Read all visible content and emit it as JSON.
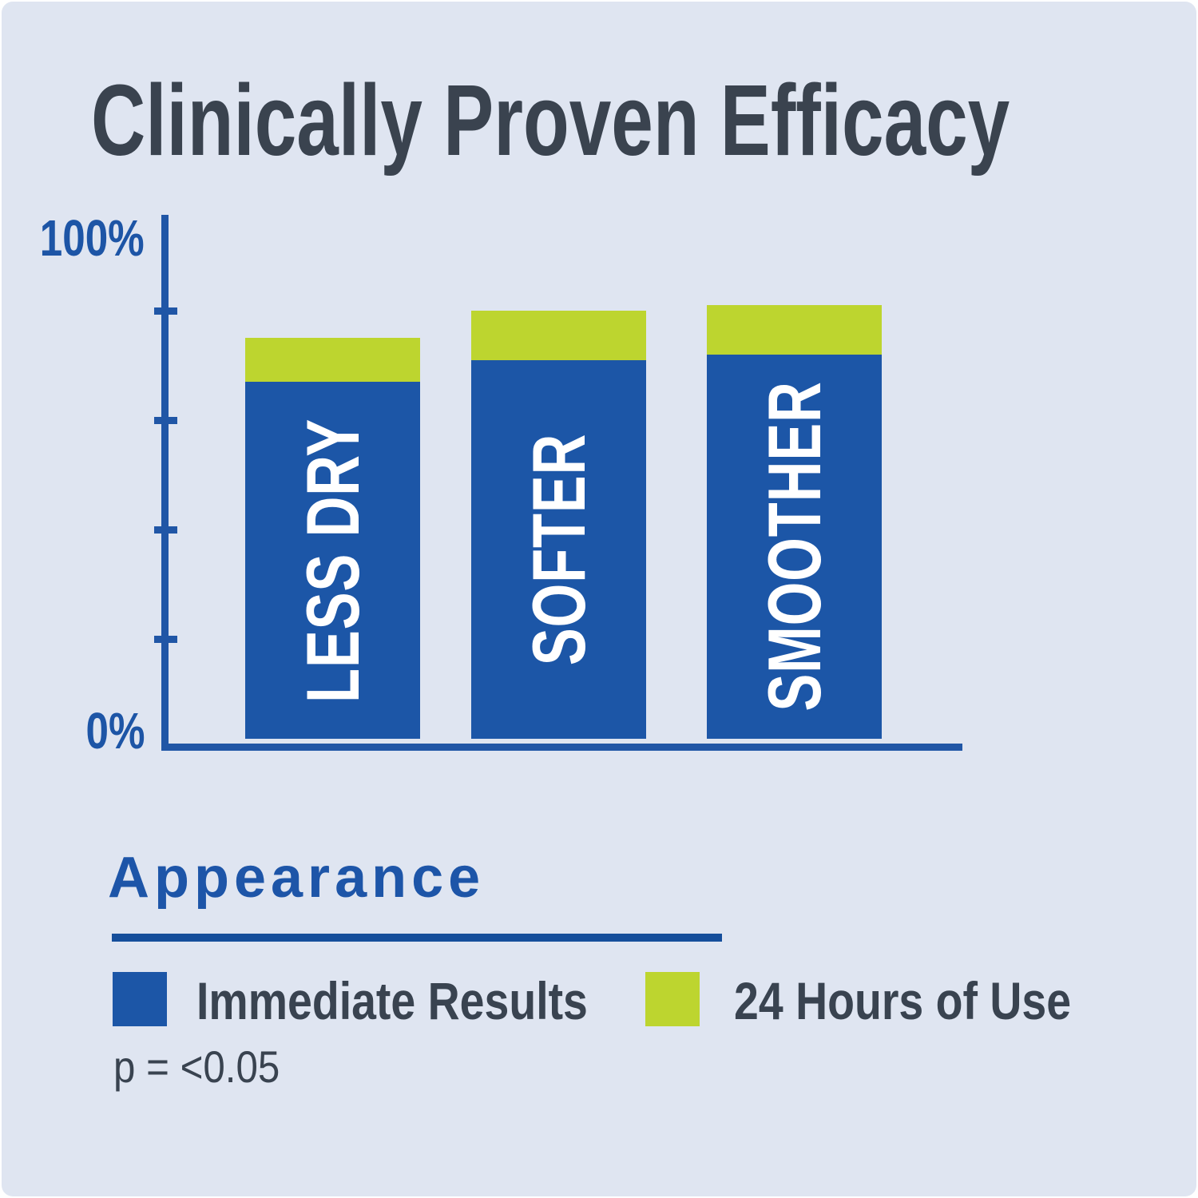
{
  "title": "Clinically Proven Efficacy",
  "y_axis": {
    "top_label": "100%",
    "bottom_label": "0%"
  },
  "chart_data": {
    "type": "bar",
    "stacked": true,
    "title": "Clinically Proven Efficacy",
    "categories": [
      "LESS DRY",
      "SOFTER",
      "SMOOTHER"
    ],
    "series": [
      {
        "name": "Immediate Results",
        "color": "#1c56a7",
        "values": [
          67,
          71,
          72
        ]
      },
      {
        "name": "24 Hours of Use",
        "color": "#bdd52f",
        "values": [
          75,
          80,
          81
        ],
        "note": "values are stacked totals after 24 hours of use (top of green cap)"
      }
    ],
    "ylim": [
      0,
      100
    ],
    "ytick_marks_pct": [
      20,
      40,
      60,
      80
    ],
    "ytick_labels": [
      "0%",
      "100%"
    ],
    "grid": false,
    "bar_label_color": "#ffffff",
    "legend_title": "Appearance",
    "legend_position": "bottom",
    "footnote": "p = <0.05"
  },
  "legend": {
    "title": "Appearance",
    "items": [
      {
        "label": "Immediate Results"
      },
      {
        "label": "24 Hours of Use"
      }
    ],
    "footnote": "p = <0.05"
  },
  "colors": {
    "background": "#dfe5f1",
    "outer_edge": "#ffffff",
    "axis_blue": "#2056a6",
    "bar_blue": "#1c56a7",
    "bar_green": "#bdd52f",
    "heading_blue": "#1d55a8",
    "underline_blue": "#154e9b",
    "title_text": "#3a434f",
    "body_text": "#394350",
    "bar_label_text": "#ffffff"
  }
}
